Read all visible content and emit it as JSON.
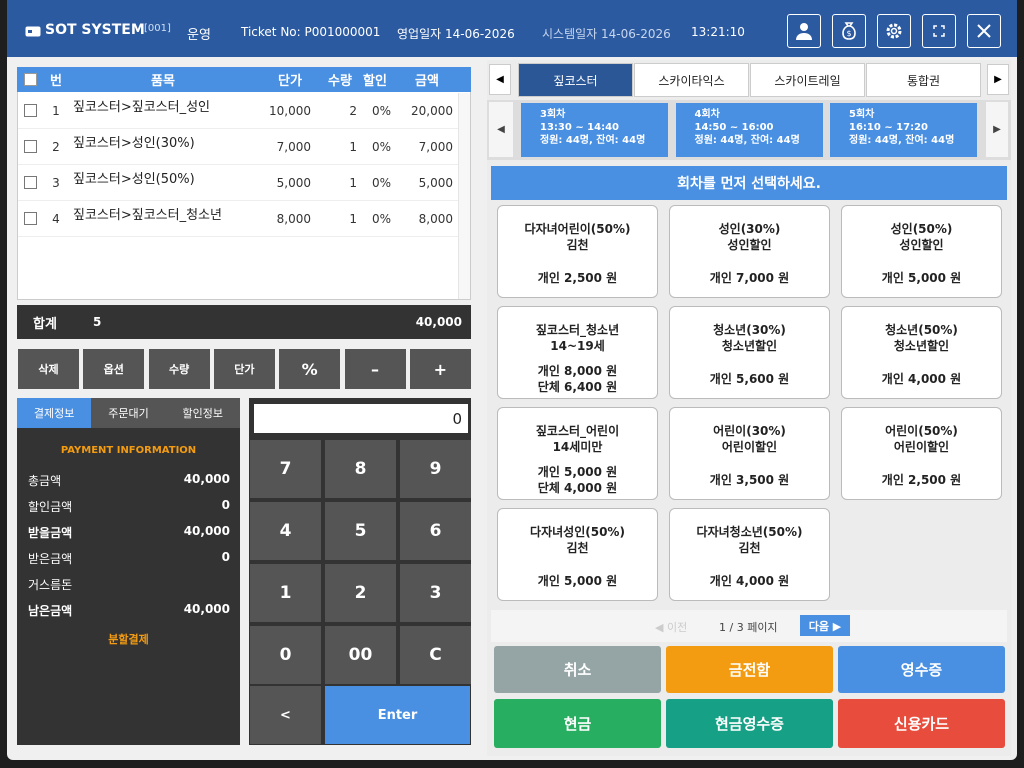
{
  "header": {
    "brand": "SOT SYSTEM",
    "terminal": "[001]",
    "mode": "운영",
    "ticket": "Ticket No: P001000001",
    "business_date": "영업일자 14-06-2026",
    "system_date": "시스템일자 14-06-2026",
    "time": "13:21:10"
  },
  "order_table": {
    "columns": [
      "번",
      "품목",
      "단가",
      "수량",
      "할인",
      "금액"
    ],
    "rows": [
      [
        "1",
        "짚코스터>짚코스터_성인",
        "10,000",
        "2",
        "0%",
        "20,000"
      ],
      [
        "2",
        "짚코스터>성인(30%)",
        "7,000",
        "1",
        "0%",
        "7,000"
      ],
      [
        "3",
        "짚코스터>성인(50%)",
        "5,000",
        "1",
        "0%",
        "5,000"
      ],
      [
        "4",
        "짚코스터>짚코스터_청소년",
        "8,000",
        "1",
        "0%",
        "8,000"
      ]
    ]
  },
  "total": {
    "label": "합계",
    "quantity": "5",
    "amount": "40,000"
  },
  "edit_buttons": [
    "삭제",
    "옵션",
    "수량",
    "단가",
    "%",
    "–",
    "+"
  ],
  "payment": {
    "tabs": [
      "결제정보",
      "주문대기",
      "할인정보"
    ],
    "heading": "PAYMENT INFORMATION",
    "rows": [
      {
        "label": "총금액",
        "value": "40,000"
      },
      {
        "label": "할인금액",
        "value": "0"
      },
      {
        "label": "받을금액",
        "value": "40,000"
      },
      {
        "label": "받은금액",
        "value": "0"
      },
      {
        "label": "거스름돈"
      },
      {
        "label": "남은금액",
        "value": "40,000"
      }
    ],
    "split": "분할결제"
  },
  "keypad": {
    "display": "0",
    "keys": [
      "7",
      "8",
      "9",
      "4",
      "5",
      "6",
      "1",
      "2",
      "3",
      "0",
      "00",
      "C",
      "<",
      "Enter"
    ]
  },
  "product_tabs": [
    "짚코스터",
    "스카이타익스",
    "스카이트레일",
    "통합권"
  ],
  "sessions": [
    {
      "round": "3회차",
      "time": "13:30 ~ 14:40",
      "capacity": "정원: 44명, 잔여: 44명"
    },
    {
      "round": "4회차",
      "time": "14:50 ~ 16:00",
      "capacity": "정원: 44명, 잔여: 44명"
    },
    {
      "round": "5회차",
      "time": "16:10 ~ 17:20",
      "capacity": "정원: 44명, 잔여: 44명"
    }
  ],
  "message": "회차를 먼저 선택하세요.",
  "products": [
    {
      "lines": [
        "다자녀어린이(50%)",
        "김천"
      ],
      "prices": [
        "개인 2,500 원"
      ]
    },
    {
      "lines": [
        "성인(30%)",
        "성인할인"
      ],
      "prices": [
        "개인 7,000 원"
      ]
    },
    {
      "lines": [
        "성인(50%)",
        "성인할인"
      ],
      "prices": [
        "개인 5,000 원"
      ]
    },
    {
      "lines": [
        "짚코스터_청소년",
        "14~19세"
      ],
      "prices": [
        "개인 8,000 원",
        "단체 6,400 원"
      ]
    },
    {
      "lines": [
        "청소년(30%)",
        "청소년할인"
      ],
      "prices": [
        "개인 5,600 원"
      ]
    },
    {
      "lines": [
        "청소년(50%)",
        "청소년할인"
      ],
      "prices": [
        "개인 4,000 원"
      ]
    },
    {
      "lines": [
        "짚코스터_어린이",
        "14세미만"
      ],
      "prices": [
        "개인 5,000 원",
        "단체 4,000 원"
      ]
    },
    {
      "lines": [
        "어린이(30%)",
        "어린이할인"
      ],
      "prices": [
        "개인 3,500 원"
      ]
    },
    {
      "lines": [
        "어린이(50%)",
        "어린이할인"
      ],
      "prices": [
        "개인 2,500 원"
      ]
    },
    {
      "lines": [
        "다자녀성인(50%)",
        "김천"
      ],
      "prices": [
        "개인 5,000 원"
      ]
    },
    {
      "lines": [
        "다자녀청소년(50%)",
        "김천"
      ],
      "prices": [
        "개인 4,000 원"
      ]
    }
  ],
  "pagination": {
    "prev": "◀ 이전",
    "page": "1 / 3 페이지",
    "next": "다음 ▶"
  },
  "actions": [
    "취소",
    "금전함",
    "영수증",
    "현금",
    "현금영수증",
    "신용카드"
  ]
}
